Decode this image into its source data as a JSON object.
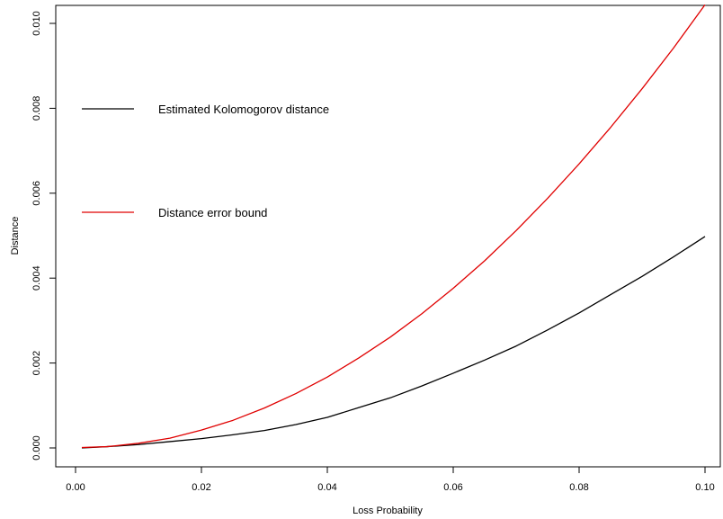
{
  "chart_data": {
    "type": "line",
    "title": "",
    "xlabel": "Loss Probability",
    "ylabel": "Distance",
    "xlim": [
      0.0,
      0.1
    ],
    "ylim": [
      0.0,
      0.0104
    ],
    "x_ticks": [
      "0.00",
      "0.02",
      "0.04",
      "0.06",
      "0.08",
      "0.10"
    ],
    "y_ticks": [
      "0.000",
      "0.002",
      "0.004",
      "0.006",
      "0.008",
      "0.010"
    ],
    "grid": false,
    "legend_position": "upper-left",
    "series": [
      {
        "name": "Estimated Kolomogorov distance",
        "color": "#000000",
        "x": [
          0.001,
          0.005,
          0.01,
          0.015,
          0.02,
          0.025,
          0.03,
          0.035,
          0.04,
          0.045,
          0.05,
          0.055,
          0.06,
          0.065,
          0.07,
          0.075,
          0.08,
          0.085,
          0.09,
          0.095,
          0.1
        ],
        "y": [
          0.0,
          3e-05,
          8e-05,
          0.00015,
          0.00022,
          0.00031,
          0.00041,
          0.00055,
          0.00072,
          0.00095,
          0.00118,
          0.00146,
          0.00176,
          0.00207,
          0.0024,
          0.00278,
          0.00318,
          0.00361,
          0.00404,
          0.0045,
          0.00498
        ]
      },
      {
        "name": "Distance error bound",
        "color": "#e00000",
        "x": [
          0.001,
          0.005,
          0.01,
          0.015,
          0.02,
          0.025,
          0.03,
          0.035,
          0.04,
          0.045,
          0.05,
          0.055,
          0.06,
          0.065,
          0.07,
          0.075,
          0.08,
          0.085,
          0.09,
          0.095,
          0.1
        ],
        "y": [
          1e-05,
          3e-05,
          0.00011,
          0.00023,
          0.00042,
          0.00065,
          0.00094,
          0.00128,
          0.00167,
          0.00212,
          0.00261,
          0.00316,
          0.00376,
          0.00441,
          0.00512,
          0.00588,
          0.00669,
          0.00755,
          0.00846,
          0.00942,
          0.01044
        ]
      }
    ]
  }
}
